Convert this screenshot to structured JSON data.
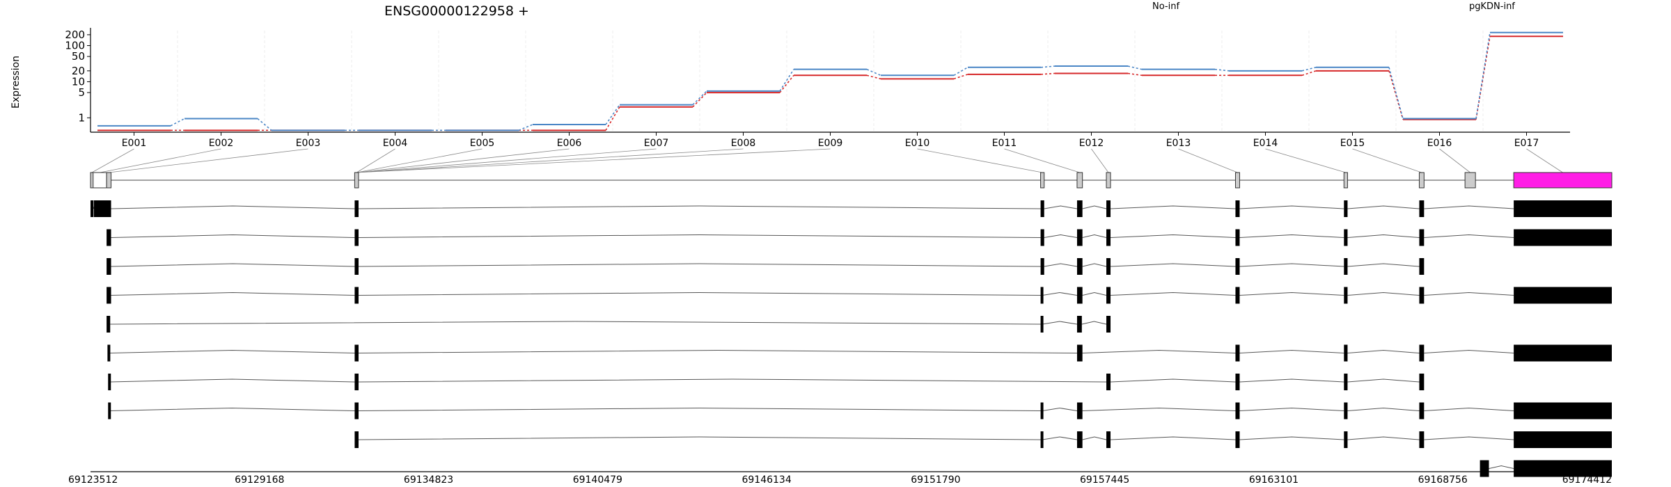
{
  "chart_data": {
    "type": "line",
    "title": "ENSG00000122958 +",
    "ylabel": "Expression",
    "y_scale": "log",
    "yticks": [
      1,
      5,
      10,
      20,
      50,
      100,
      200
    ],
    "grid": false,
    "legend_placement": "top",
    "categories": [
      "E001",
      "E002",
      "E003",
      "E004",
      "E005",
      "E006",
      "E007",
      "E008",
      "E009",
      "E010",
      "E011",
      "E012",
      "E013",
      "E014",
      "E015",
      "E016",
      "E017"
    ],
    "series": [
      {
        "name": "No-inf",
        "color": "#d62728",
        "values": [
          0.45,
          0.45,
          0.45,
          0.45,
          0.45,
          0.45,
          2.0,
          5.0,
          15.0,
          12.0,
          16.0,
          17.0,
          15.0,
          15.0,
          20.0,
          0.9,
          180.0
        ]
      },
      {
        "name": "pgKDN-inf",
        "color": "#4a86c6",
        "values": [
          0.6,
          0.95,
          0.45,
          0.45,
          0.45,
          0.65,
          2.3,
          5.5,
          22.0,
          15.0,
          25.0,
          27.0,
          22.0,
          20.0,
          25.0,
          0.95,
          230.0
        ]
      }
    ],
    "genome_axis": {
      "ticks": [
        "69123512",
        "69129168",
        "69134823",
        "69140479",
        "69146134",
        "69151790",
        "69157445",
        "69163101",
        "69168756",
        "69174412"
      ]
    },
    "gene_model": {
      "exon_spans_genomic": [
        [
          69123512,
          69123600
        ],
        [
          69123600,
          69124050
        ],
        [
          69124050,
          69124200
        ],
        [
          69132350,
          69132480
        ],
        [
          69155300,
          69155420
        ],
        [
          69156520,
          69156700
        ],
        [
          69157500,
          69157640
        ],
        [
          69161820,
          69161960
        ],
        [
          69165450,
          69165570
        ],
        [
          69167970,
          69168130
        ],
        [
          69169500,
          69169850
        ],
        [
          69171130,
          69174412
        ]
      ],
      "highlight_exon_index": 11,
      "highlight_color": "#ff1ee6",
      "exon_fill": "#cccccc"
    },
    "transcripts": [
      {
        "exons": [
          [
            69123512,
            69123560
          ],
          [
            69123620,
            69124200
          ],
          [
            69132350,
            69132480
          ],
          [
            69155300,
            69155420
          ],
          [
            69156520,
            69156700
          ],
          [
            69157500,
            69157640
          ],
          [
            69161820,
            69161960
          ],
          [
            69165450,
            69165570
          ],
          [
            69167970,
            69168130
          ],
          [
            69171130,
            69174412
          ]
        ]
      },
      {
        "exons": [
          [
            69124050,
            69124200
          ],
          [
            69132350,
            69132480
          ],
          [
            69155300,
            69155420
          ],
          [
            69156520,
            69156700
          ],
          [
            69157500,
            69157640
          ],
          [
            69161820,
            69161960
          ],
          [
            69165450,
            69165570
          ],
          [
            69167970,
            69168130
          ],
          [
            69171130,
            69174412
          ]
        ]
      },
      {
        "exons": [
          [
            69124050,
            69124200
          ],
          [
            69132350,
            69132480
          ],
          [
            69155300,
            69155420
          ],
          [
            69156520,
            69156700
          ],
          [
            69157500,
            69157640
          ],
          [
            69161820,
            69161960
          ],
          [
            69165450,
            69165570
          ],
          [
            69167970,
            69168130
          ]
        ]
      },
      {
        "exons": [
          [
            69124050,
            69124200
          ],
          [
            69132350,
            69132480
          ],
          [
            69155300,
            69155360
          ],
          [
            69156520,
            69156700
          ],
          [
            69157500,
            69157640
          ],
          [
            69161820,
            69161960
          ],
          [
            69165450,
            69165570
          ],
          [
            69167970,
            69168130
          ],
          [
            69171130,
            69174412
          ]
        ]
      },
      {
        "exons": [
          [
            69124050,
            69124170
          ],
          [
            69155300,
            69155360
          ],
          [
            69156520,
            69156680
          ],
          [
            69157500,
            69157640
          ]
        ]
      },
      {
        "exons": [
          [
            69124080,
            69124160
          ],
          [
            69132350,
            69132480
          ],
          [
            69156520,
            69156700
          ],
          [
            69161820,
            69161960
          ],
          [
            69165450,
            69165570
          ],
          [
            69167970,
            69168130
          ],
          [
            69171130,
            69174412
          ]
        ]
      },
      {
        "exons": [
          [
            69124100,
            69124150
          ],
          [
            69132350,
            69132480
          ],
          [
            69157500,
            69157640
          ],
          [
            69161820,
            69161960
          ],
          [
            69165450,
            69165570
          ],
          [
            69167970,
            69168130
          ]
        ]
      },
      {
        "exons": [
          [
            69124100,
            69124150
          ],
          [
            69132350,
            69132480
          ],
          [
            69155300,
            69155360
          ],
          [
            69156520,
            69156700
          ],
          [
            69161820,
            69161960
          ],
          [
            69165450,
            69165570
          ],
          [
            69167970,
            69168130
          ],
          [
            69171130,
            69174412
          ]
        ]
      },
      {
        "exons": [
          [
            69132350,
            69132480
          ],
          [
            69155300,
            69155360
          ],
          [
            69156520,
            69156700
          ],
          [
            69157500,
            69157640
          ],
          [
            69161820,
            69161960
          ],
          [
            69165450,
            69165570
          ],
          [
            69167970,
            69168130
          ],
          [
            69171130,
            69174412
          ]
        ]
      },
      {
        "exons": [
          [
            69170000,
            69170300
          ],
          [
            69171130,
            69174412
          ]
        ]
      }
    ]
  }
}
